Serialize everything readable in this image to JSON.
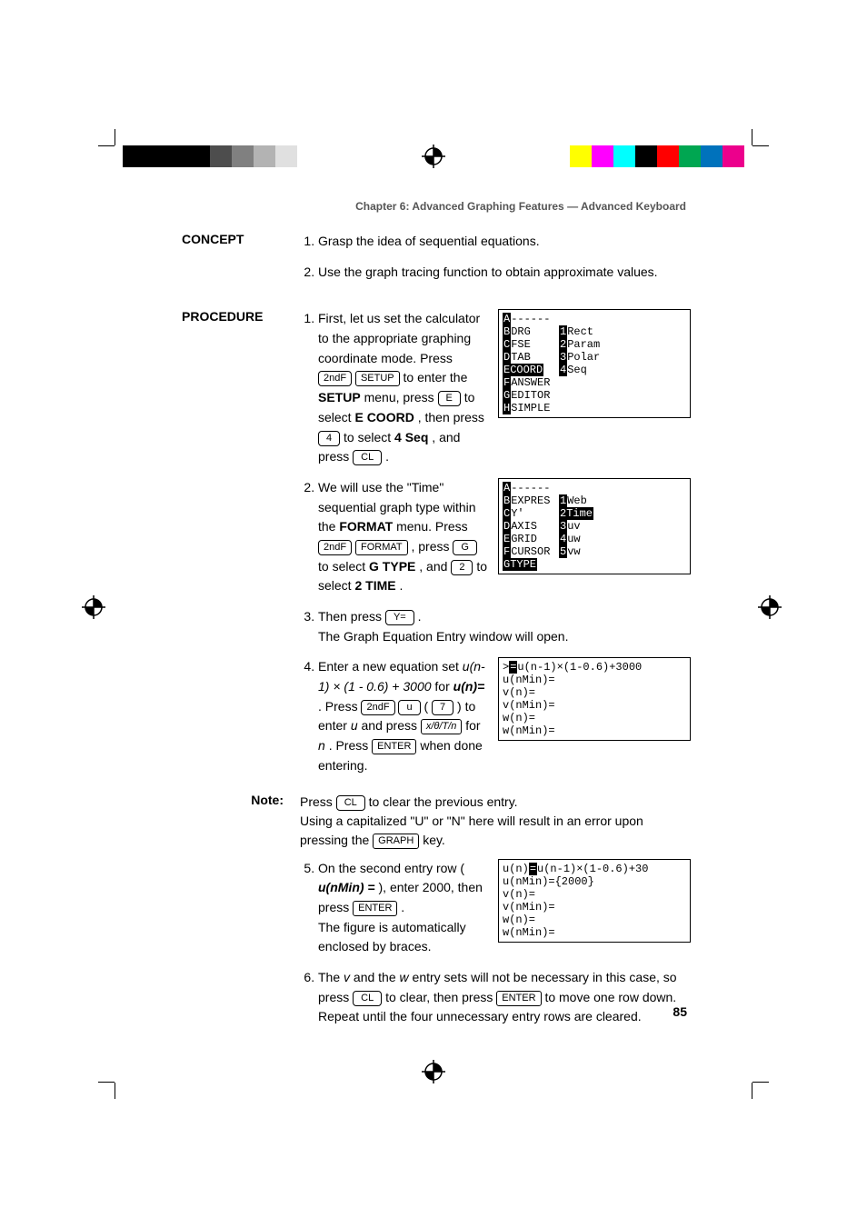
{
  "chapter_header": "Chapter 6: Advanced Graphing Features — Advanced Keyboard",
  "labels": {
    "concept": "CONCEPT",
    "procedure": "PROCEDURE",
    "note": "Note:"
  },
  "concept": {
    "items": [
      "Grasp the idea of sequential equations.",
      "Use the graph tracing function to obtain approximate values."
    ]
  },
  "keys": {
    "secondf": "2ndF",
    "setup": "SETUP",
    "format": "FORMAT",
    "e": "E",
    "g": "G",
    "two": "2",
    "four": "4",
    "seven": "7",
    "u": "u",
    "cl": "CL",
    "yeq": "Y=",
    "xvar": "x/θ/T/n",
    "enter": "ENTER",
    "graph": "GRAPH"
  },
  "procedure": {
    "step1_a": "First, let us set the calculator to the appropriate graphing coordinate mode. Press ",
    "step1_b": " to enter the ",
    "step1_setup_bold": "SETUP",
    "step1_c": " menu, press ",
    "step1_d": " to select ",
    "step1_ecoord_bold": "E COORD",
    "step1_e": ", then press ",
    "step1_f": " to select ",
    "step1_4seq_bold": "4 Seq",
    "step1_g": ", and press ",
    "step1_h": ".",
    "step2_a": "We will use the \"Time\" sequential graph type within the ",
    "step2_format_bold": "FORMAT",
    "step2_b": " menu. Press ",
    "step2_c": ", press ",
    "step2_d": " to select ",
    "step2_gtype_bold": "G TYPE",
    "step2_e": ", and ",
    "step2_f": " to select ",
    "step2_2time_bold": "2 TIME",
    "step2_g": ".",
    "step3_a": "Then press ",
    "step3_b": ".",
    "step3_c": "The Graph Equation Entry window will open.",
    "step4_a": "Enter a new equation set ",
    "step4_eq_it": "u(n-1) × (1 - 0.6) + 3000",
    "step4_b": " for ",
    "step4_un_bold_it": "u(n)=",
    "step4_c": ". Press ",
    "step4_d": " (",
    "step4_e": ") to enter ",
    "step4_u_it": "u",
    "step4_f": " and press ",
    "step4_g": " for ",
    "step4_n_it": "n",
    "step4_h": ". Press ",
    "step4_i": " when done entering.",
    "note_a": "Press ",
    "note_b": " to clear the previous entry.",
    "note_c": "Using a capitalized \"U\" or \"N\" here will result in an error upon pressing the ",
    "note_d": " key.",
    "step5_a": "On the second entry row (",
    "step5_unmin_bold_it": "u(nMin) =",
    "step5_b": "), enter 2000, then press ",
    "step5_c": ".",
    "step5_d": "The figure is automatically enclosed by braces.",
    "step6_a": "The ",
    "step6_v_it": "v",
    "step6_b": " and the ",
    "step6_w_it": "w",
    "step6_c": " entry sets will not be necessary in this case, so press ",
    "step6_d": " to clear, then press ",
    "step6_e": " to move one row down. Repeat until the four unnecessary entry rows are cleared."
  },
  "screens": {
    "setup": {
      "left": [
        "A------",
        "BDRG",
        "CFSE",
        "DTAB",
        "ECOORD",
        "FANSWER",
        "GEDITOR",
        "HSIMPLE"
      ],
      "left_inv_index": 4,
      "right": [
        "1Rect",
        "2Param",
        "3Polar",
        "4Seq"
      ]
    },
    "format": {
      "left": [
        "A------",
        "BEXPRES",
        "CY'",
        "DAXIS",
        "EGRID",
        "FCURSOR",
        "GTYPE"
      ],
      "left_inv_index": 6,
      "right": [
        "1Web",
        "2Time",
        "3uv",
        "4uw",
        "5vw"
      ],
      "right_inv_index": 1
    },
    "eq1": {
      "lines": [
        ">▮u(n-1)×(1-0.6)+3000",
        "u(nMin)=",
        "v(n)=",
        "v(nMin)=",
        "w(n)=",
        "w(nMin)="
      ]
    },
    "eq2": {
      "lines": [
        "u(n)▮u(n-1)×(1-0.6)+30",
        "u(nMin)={2000}",
        "v(n)=",
        "v(nMin)=",
        "w(n)=",
        "w(nMin)="
      ]
    }
  },
  "page_number": "85",
  "reg_colors": {
    "left": [
      "#000000",
      "#000000",
      "#000000",
      "#000000",
      "#4d4d4d",
      "#808080",
      "#b3b3b3",
      "#e0e0e0"
    ],
    "right": [
      "#ffff00",
      "#ff00ff",
      "#00ffff",
      "#000000",
      "#ff0000",
      "#00a651",
      "#0072bc",
      "#ec008c"
    ]
  }
}
